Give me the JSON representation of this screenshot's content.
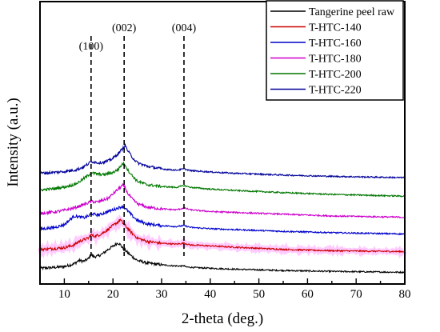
{
  "chart_data": {
    "type": "line",
    "xlabel": "2-theta (deg.)",
    "ylabel": "Intensity (a.u.)",
    "xlim": [
      5,
      80
    ],
    "xticks": [
      10,
      20,
      30,
      40,
      50,
      60,
      70,
      80
    ],
    "y_ticks_shown": false,
    "legend_position": "top-right",
    "reference_lines": [
      {
        "x": 15.5,
        "label": "(100)"
      },
      {
        "x": 22.3,
        "label": "(002)"
      },
      {
        "x": 34.6,
        "label": "(004)"
      }
    ],
    "series": [
      {
        "name": "Tangerine peel raw",
        "color": "#000000",
        "offset": 0,
        "points": [
          [
            5,
            12
          ],
          [
            8,
            14
          ],
          [
            10,
            16
          ],
          [
            12,
            22
          ],
          [
            13,
            30
          ],
          [
            14,
            28
          ],
          [
            15,
            34
          ],
          [
            15.5,
            45
          ],
          [
            16,
            38
          ],
          [
            17,
            40
          ],
          [
            18,
            46
          ],
          [
            19,
            55
          ],
          [
            20,
            62
          ],
          [
            21,
            70
          ],
          [
            21.5,
            66
          ],
          [
            22,
            58
          ],
          [
            23,
            48
          ],
          [
            24,
            38
          ],
          [
            25,
            30
          ],
          [
            27,
            24
          ],
          [
            30,
            20
          ],
          [
            32,
            18
          ],
          [
            34,
            17
          ],
          [
            34.6,
            18
          ],
          [
            35,
            15
          ],
          [
            38,
            13
          ],
          [
            45,
            10
          ],
          [
            55,
            7
          ],
          [
            65,
            5
          ],
          [
            80,
            3
          ]
        ]
      },
      {
        "name": "T-HTC-140",
        "color": "#cc0000",
        "offset": 45,
        "shade": "#ff66ff",
        "points": [
          [
            5,
            10
          ],
          [
            8,
            12
          ],
          [
            10,
            14
          ],
          [
            12,
            20
          ],
          [
            13,
            28
          ],
          [
            14,
            32
          ],
          [
            15,
            36
          ],
          [
            15.5,
            44
          ],
          [
            16,
            40
          ],
          [
            17,
            42
          ],
          [
            18,
            48
          ],
          [
            19,
            56
          ],
          [
            20,
            64
          ],
          [
            21,
            72
          ],
          [
            21.5,
            78
          ],
          [
            22,
            70
          ],
          [
            23,
            58
          ],
          [
            24,
            46
          ],
          [
            25,
            36
          ],
          [
            27,
            28
          ],
          [
            30,
            24
          ],
          [
            33,
            22
          ],
          [
            34.6,
            24
          ],
          [
            36,
            20
          ],
          [
            40,
            18
          ],
          [
            45,
            15
          ],
          [
            55,
            10
          ],
          [
            65,
            7
          ],
          [
            80,
            5
          ]
        ]
      },
      {
        "name": "T-HTC-160",
        "color": "#0000cc",
        "offset": 87,
        "points": [
          [
            5,
            14
          ],
          [
            8,
            18
          ],
          [
            10,
            24
          ],
          [
            11,
            34
          ],
          [
            12,
            44
          ],
          [
            13,
            42
          ],
          [
            14,
            40
          ],
          [
            15,
            44
          ],
          [
            15.5,
            50
          ],
          [
            16,
            48
          ],
          [
            17,
            46
          ],
          [
            18,
            50
          ],
          [
            19,
            54
          ],
          [
            20,
            58
          ],
          [
            21,
            62
          ],
          [
            21.5,
            64
          ],
          [
            22,
            66
          ],
          [
            23,
            56
          ],
          [
            24,
            44
          ],
          [
            25,
            34
          ],
          [
            27,
            26
          ],
          [
            30,
            22
          ],
          [
            33,
            20
          ],
          [
            34.6,
            22
          ],
          [
            36,
            18
          ],
          [
            40,
            15
          ],
          [
            45,
            13
          ],
          [
            55,
            9
          ],
          [
            65,
            6
          ],
          [
            80,
            3
          ]
        ]
      },
      {
        "name": "T-HTC-180",
        "color": "#cc00cc",
        "offset": 125,
        "points": [
          [
            5,
            12
          ],
          [
            8,
            15
          ],
          [
            10,
            19
          ],
          [
            12,
            24
          ],
          [
            13,
            28
          ],
          [
            14,
            32
          ],
          [
            15,
            36
          ],
          [
            15.5,
            40
          ],
          [
            16,
            38
          ],
          [
            17,
            38
          ],
          [
            18,
            42
          ],
          [
            19,
            46
          ],
          [
            20,
            56
          ],
          [
            21,
            66
          ],
          [
            22,
            76
          ],
          [
            22.5,
            70
          ],
          [
            23,
            58
          ],
          [
            24,
            44
          ],
          [
            25,
            34
          ],
          [
            27,
            26
          ],
          [
            30,
            22
          ],
          [
            33,
            20
          ],
          [
            34.6,
            24
          ],
          [
            36,
            20
          ],
          [
            40,
            16
          ],
          [
            45,
            14
          ],
          [
            55,
            10
          ],
          [
            65,
            6
          ],
          [
            80,
            3
          ]
        ]
      },
      {
        "name": "T-HTC-200",
        "color": "#007700",
        "offset": 170,
        "points": [
          [
            5,
            20
          ],
          [
            8,
            23
          ],
          [
            10,
            27
          ],
          [
            12,
            32
          ],
          [
            13,
            38
          ],
          [
            14,
            46
          ],
          [
            15,
            54
          ],
          [
            15.5,
            60
          ],
          [
            16,
            58
          ],
          [
            17,
            56
          ],
          [
            18,
            55
          ],
          [
            19,
            57
          ],
          [
            20,
            60
          ],
          [
            21,
            66
          ],
          [
            22,
            80
          ],
          [
            22.5,
            78
          ],
          [
            23,
            66
          ],
          [
            24,
            52
          ],
          [
            25,
            40
          ],
          [
            27,
            32
          ],
          [
            30,
            28
          ],
          [
            33,
            26
          ],
          [
            34.6,
            30
          ],
          [
            36,
            26
          ],
          [
            40,
            22
          ],
          [
            45,
            19
          ],
          [
            55,
            14
          ],
          [
            65,
            10
          ],
          [
            80,
            6
          ]
        ]
      },
      {
        "name": "T-HTC-220",
        "color": "#000099",
        "offset": 210,
        "points": [
          [
            5,
            18
          ],
          [
            8,
            20
          ],
          [
            10,
            22
          ],
          [
            12,
            25
          ],
          [
            13,
            28
          ],
          [
            14,
            33
          ],
          [
            15,
            40
          ],
          [
            15.5,
            45
          ],
          [
            16,
            44
          ],
          [
            17,
            42
          ],
          [
            18,
            43
          ],
          [
            19,
            46
          ],
          [
            20,
            52
          ],
          [
            21,
            62
          ],
          [
            22,
            74
          ],
          [
            22.5,
            82
          ],
          [
            23,
            70
          ],
          [
            24,
            54
          ],
          [
            25,
            42
          ],
          [
            27,
            34
          ],
          [
            30,
            28
          ],
          [
            33,
            25
          ],
          [
            34.6,
            28
          ],
          [
            36,
            24
          ],
          [
            40,
            21
          ],
          [
            45,
            18
          ],
          [
            55,
            14
          ],
          [
            65,
            11
          ],
          [
            80,
            8
          ]
        ]
      }
    ]
  }
}
